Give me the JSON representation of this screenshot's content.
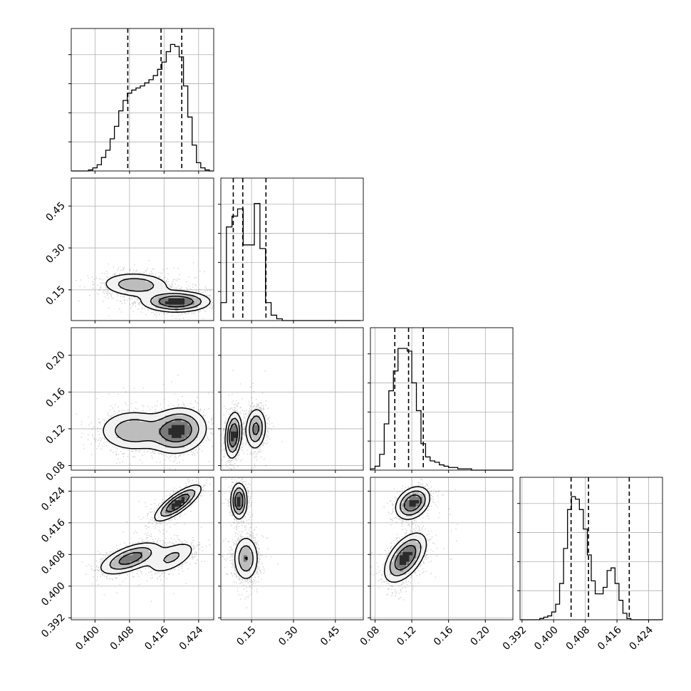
{
  "chart_data": {
    "type": "corner",
    "grid": true,
    "colors": {
      "line": "#000000",
      "grid": "#b0b0b0",
      "background": "#ffffff"
    },
    "params": [
      {
        "tick_values": [
          0.4,
          0.408,
          0.416,
          0.424
        ],
        "tick_labels": [
          "0.400",
          "0.408",
          "0.416",
          "0.424"
        ],
        "range": [
          0.3945,
          0.4275
        ]
      },
      {
        "tick_values": [
          0.15,
          0.3,
          0.45
        ],
        "tick_labels": [
          "0.15",
          "0.30",
          "0.45"
        ],
        "range": [
          0.04,
          0.55
        ]
      },
      {
        "tick_values": [
          0.08,
          0.12,
          0.16,
          0.2
        ],
        "tick_labels": [
          "0.08",
          "0.12",
          "0.16",
          "0.20"
        ],
        "range": [
          0.075,
          0.23
        ]
      },
      {
        "tick_values": [
          0.392,
          0.4,
          0.408,
          0.416,
          0.424
        ],
        "tick_labels": [
          "0.392",
          "0.400",
          "0.408",
          "0.416",
          "0.424"
        ],
        "range": [
          0.3915,
          0.4275
        ]
      }
    ],
    "histograms": [
      {
        "param": 0,
        "bin_edges": [
          0.3945,
          0.3955,
          0.3965,
          0.3975,
          0.3985,
          0.3995,
          0.4005,
          0.4015,
          0.4025,
          0.4035,
          0.4045,
          0.4055,
          0.4065,
          0.4075,
          0.4085,
          0.4095,
          0.4105,
          0.4115,
          0.4125,
          0.4135,
          0.4145,
          0.4155,
          0.4165,
          0.4175,
          0.4185,
          0.4195,
          0.4205,
          0.4215,
          0.4225,
          0.4235,
          0.4245,
          0.4255,
          0.4265,
          0.4275
        ],
        "counts": [
          0,
          0,
          0,
          0,
          1,
          3,
          6,
          13,
          20,
          31,
          43,
          58,
          68,
          75,
          78,
          80,
          82,
          85,
          88,
          92,
          98,
          105,
          115,
          122,
          120,
          110,
          82,
          52,
          25,
          8,
          3,
          1,
          0
        ],
        "quantiles": [
          0.4076,
          0.4153,
          0.4201
        ],
        "ymax": 125
      },
      {
        "param": 1,
        "bin_edges": [
          0.04,
          0.06,
          0.08,
          0.1,
          0.12,
          0.14,
          0.16,
          0.18,
          0.2,
          0.22,
          0.24,
          0.26,
          0.28,
          0.3,
          0.32,
          0.34,
          0.36,
          0.38,
          0.4,
          0.42,
          0.44,
          0.46,
          0.48,
          0.5,
          0.52,
          0.54
        ],
        "counts": [
          10,
          52,
          58,
          62,
          42,
          42,
          65,
          40,
          10,
          3,
          1,
          0,
          0,
          0,
          0,
          0,
          0,
          0,
          0,
          0,
          0,
          0,
          0,
          0,
          0
        ],
        "quantiles": [
          0.0845,
          0.1185,
          0.2015
        ],
        "ymax": 72
      },
      {
        "param": 2,
        "bin_edges": [
          0.075,
          0.08,
          0.085,
          0.09,
          0.095,
          0.1,
          0.105,
          0.11,
          0.115,
          0.12,
          0.125,
          0.13,
          0.135,
          0.14,
          0.145,
          0.15,
          0.155,
          0.16,
          0.165,
          0.17,
          0.175,
          0.18,
          0.185,
          0.19,
          0.195,
          0.2,
          0.205,
          0.21,
          0.215,
          0.22,
          0.225,
          0.23
        ],
        "counts": [
          1,
          3,
          12,
          35,
          60,
          75,
          92,
          92,
          90,
          66,
          45,
          20,
          10,
          7,
          6,
          4,
          3,
          2,
          2,
          1,
          1,
          1,
          0,
          0,
          0,
          0,
          0,
          0,
          0,
          0,
          0
        ],
        "quantiles": [
          0.1015,
          0.1165,
          0.1325
        ],
        "ymax": 98
      },
      {
        "param": 3,
        "bin_edges": [
          0.3915,
          0.3925,
          0.3935,
          0.3945,
          0.3955,
          0.3965,
          0.3975,
          0.3985,
          0.3995,
          0.4005,
          0.4015,
          0.4025,
          0.4035,
          0.4045,
          0.4055,
          0.4065,
          0.4075,
          0.4085,
          0.4095,
          0.4105,
          0.4115,
          0.4125,
          0.4135,
          0.4145,
          0.4155,
          0.4165,
          0.4175,
          0.4185,
          0.4195,
          0.4205,
          0.4215,
          0.4225,
          0.4235,
          0.4245,
          0.4255,
          0.4265,
          0.4275
        ],
        "counts": [
          0,
          0,
          0,
          0,
          0,
          1,
          2,
          3,
          6,
          12,
          28,
          55,
          85,
          95,
          93,
          85,
          70,
          50,
          30,
          20,
          20,
          25,
          38,
          40,
          28,
          15,
          5,
          1,
          0,
          0,
          0,
          0,
          0,
          0,
          0,
          0
        ],
        "quantiles": [
          0.4044,
          0.4088,
          0.4191
        ],
        "ymax": 100
      }
    ],
    "pair_panels": [
      {
        "x_param": 0,
        "y_param": 1,
        "modes": [
          {
            "mean": [
              0.4095,
              0.168
            ],
            "std": [
              0.004,
              0.022
            ],
            "rho": -0.1,
            "weight": 0.4
          },
          {
            "mean": [
              0.4188,
              0.108
            ],
            "std": [
              0.0038,
              0.018
            ],
            "rho": 0.0,
            "weight": 0.6
          }
        ]
      },
      {
        "x_param": 0,
        "y_param": 2,
        "modes": [
          {
            "mean": [
              0.409,
              0.118
            ],
            "std": [
              0.004,
              0.011
            ],
            "rho": 0.0,
            "weight": 0.4
          },
          {
            "mean": [
              0.4192,
              0.118
            ],
            "std": [
              0.0032,
              0.012
            ],
            "rho": 0.1,
            "weight": 0.6
          }
        ]
      },
      {
        "x_param": 1,
        "y_param": 2,
        "modes": [
          {
            "mean": [
              0.085,
              0.113
            ],
            "std": [
              0.014,
              0.012
            ],
            "rho": 0.2,
            "weight": 0.55
          },
          {
            "mean": [
              0.165,
              0.12
            ],
            "std": [
              0.018,
              0.011
            ],
            "rho": 0.1,
            "weight": 0.45
          }
        ]
      },
      {
        "x_param": 0,
        "y_param": 3,
        "modes": [
          {
            "mean": [
              0.4082,
              0.407
            ],
            "std": [
              0.0035,
              0.002
            ],
            "rho": 0.6,
            "weight": 0.45
          },
          {
            "mean": [
              0.4192,
              0.421
            ],
            "std": [
              0.0026,
              0.0022
            ],
            "rho": 0.8,
            "weight": 0.35
          },
          {
            "mean": [
              0.4178,
              0.4072
            ],
            "std": [
              0.003,
              0.0022
            ],
            "rho": 0.6,
            "weight": 0.2
          }
        ]
      },
      {
        "x_param": 1,
        "y_param": 3,
        "modes": [
          {
            "mean": [
              0.105,
              0.4215
            ],
            "std": [
              0.014,
              0.0022
            ],
            "rho": 0.0,
            "weight": 0.45
          },
          {
            "mean": [
              0.13,
              0.407
            ],
            "std": [
              0.022,
              0.0028
            ],
            "rho": 0.0,
            "weight": 0.55
          }
        ]
      },
      {
        "x_param": 2,
        "y_param": 3,
        "modes": [
          {
            "mean": [
              0.113,
              0.4072
            ],
            "std": [
              0.011,
              0.003
            ],
            "rho": 0.55,
            "weight": 0.62
          },
          {
            "mean": [
              0.121,
              0.421
            ],
            "std": [
              0.009,
              0.002
            ],
            "rho": 0.3,
            "weight": 0.38
          }
        ]
      }
    ],
    "title": "",
    "axis_labels": []
  }
}
